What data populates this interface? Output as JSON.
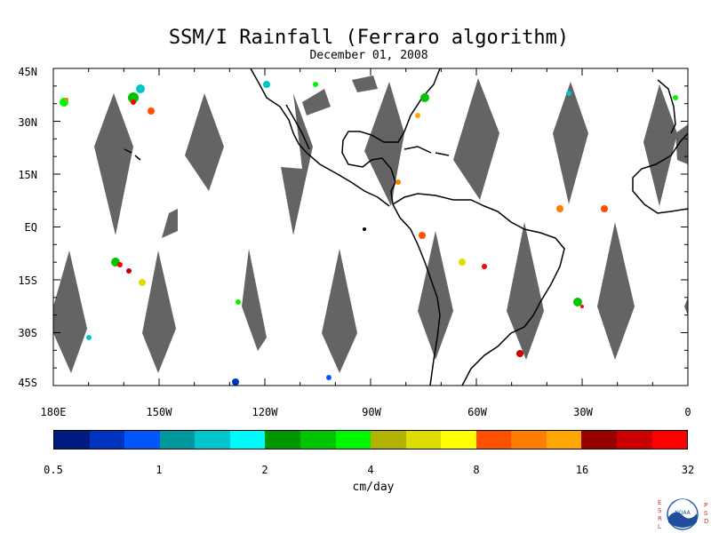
{
  "title": "SSM/I Rainfall (Ferraro algorithm)",
  "subtitle": "December 01, 2008",
  "units": "cm/day",
  "lat_labels": [
    "45N",
    "30N",
    "15N",
    "EQ",
    "15S",
    "30S",
    "45S"
  ],
  "lon_labels": [
    "180E",
    "150W",
    "120W",
    "90W",
    "60W",
    "30W",
    "0"
  ],
  "colorbar": {
    "colors": [
      "#001b7f",
      "#0033c0",
      "#0057ff",
      "#00989d",
      "#00c6cc",
      "#00fafa",
      "#009600",
      "#00c400",
      "#00f600",
      "#b2b200",
      "#dddd00",
      "#ffff00",
      "#ff5000",
      "#ff7e00",
      "#ffa700",
      "#990000",
      "#cc0000",
      "#ff0000"
    ],
    "tick_labels": [
      "0.5",
      "1",
      "2",
      "4",
      "8",
      "16",
      "32"
    ]
  },
  "logo": {
    "left_letters": "ESRL",
    "right_letters": "PSD",
    "center_text": "NOAA"
  },
  "map": {
    "lat_range": [
      -45,
      45
    ],
    "lon_range": [
      -180,
      0
    ],
    "swath_gap_color": "#646464",
    "coastline_color": "#000000"
  }
}
